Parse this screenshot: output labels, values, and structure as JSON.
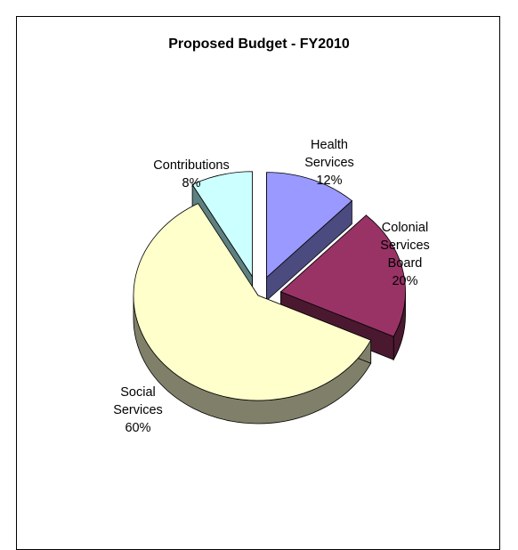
{
  "chart_data": {
    "type": "pie",
    "title": "Proposed Budget - FY2010",
    "slices": [
      {
        "name": "Health Services",
        "label_lines": [
          "Health",
          "Services",
          "12%"
        ],
        "value": 12,
        "color": "#9999FF",
        "side_color": "#4B4B80",
        "exploded": true
      },
      {
        "name": "Colonial Services Board",
        "label_lines": [
          "Colonial",
          "Services",
          "Board",
          "20%"
        ],
        "value": 20,
        "color": "#993366",
        "side_color": "#4A1930",
        "exploded": true
      },
      {
        "name": "Social Services",
        "label_lines": [
          "Social",
          "Services",
          "60%"
        ],
        "value": 60,
        "color": "#FFFFCC",
        "side_color": "#80806A",
        "exploded": false
      },
      {
        "name": "Contributions",
        "label_lines": [
          "Contributions",
          "8%"
        ],
        "value": 8,
        "color": "#CCFFFF",
        "side_color": "#5E8080",
        "exploded": true
      }
    ],
    "legend": "none"
  }
}
